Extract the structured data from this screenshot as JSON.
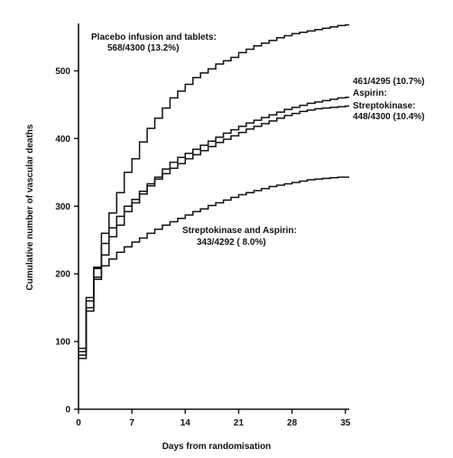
{
  "chart_data": {
    "type": "line",
    "step": true,
    "title": "",
    "xlabel": "Days from randomisation",
    "ylabel": "Cumulative number of vascular deaths",
    "xlim": [
      0,
      35.5
    ],
    "ylim": [
      0,
      570
    ],
    "xticks": [
      0,
      7,
      14,
      21,
      28,
      35
    ],
    "yticks": [
      0,
      100,
      200,
      300,
      400,
      500
    ],
    "grid": false,
    "series": [
      {
        "name": "Placebo infusion and tablets",
        "x": [
          0,
          1,
          2,
          3,
          4,
          5,
          6,
          7,
          8,
          9,
          10,
          11,
          12,
          13,
          14,
          15,
          16,
          17,
          18,
          19,
          20,
          21,
          22,
          23,
          24,
          25,
          26,
          27,
          28,
          29,
          30,
          31,
          32,
          33,
          34,
          35
        ],
        "y": [
          90,
          165,
          210,
          260,
          290,
          320,
          350,
          370,
          395,
          415,
          430,
          445,
          460,
          470,
          480,
          490,
          497,
          503,
          510,
          515,
          520,
          527,
          532,
          537,
          541,
          545,
          549,
          552,
          555,
          557,
          559,
          561,
          563,
          565,
          567,
          568
        ]
      },
      {
        "name": "Aspirin",
        "x": [
          0,
          1,
          2,
          3,
          4,
          5,
          6,
          7,
          8,
          9,
          10,
          11,
          12,
          13,
          14,
          15,
          16,
          17,
          18,
          19,
          20,
          21,
          22,
          23,
          24,
          25,
          26,
          27,
          28,
          29,
          30,
          31,
          32,
          33,
          34,
          35
        ],
        "y": [
          85,
          160,
          208,
          245,
          268,
          285,
          300,
          310,
          322,
          333,
          343,
          355,
          365,
          372,
          378,
          384,
          390,
          396,
          402,
          408,
          413,
          418,
          423,
          427,
          431,
          435,
          439,
          443,
          446,
          449,
          452,
          454,
          456,
          458,
          460,
          461
        ]
      },
      {
        "name": "Streptokinase",
        "x": [
          0,
          1,
          2,
          3,
          4,
          5,
          6,
          7,
          8,
          9,
          10,
          11,
          12,
          13,
          14,
          15,
          16,
          17,
          18,
          19,
          20,
          21,
          22,
          23,
          24,
          25,
          26,
          27,
          28,
          29,
          30,
          31,
          32,
          33,
          34,
          35
        ],
        "y": [
          80,
          150,
          195,
          228,
          255,
          272,
          292,
          305,
          318,
          330,
          340,
          348,
          356,
          363,
          370,
          376,
          382,
          388,
          394,
          399,
          404,
          409,
          414,
          418,
          422,
          426,
          430,
          434,
          437,
          440,
          442,
          444,
          445,
          446,
          447,
          448
        ]
      },
      {
        "name": "Streptokinase and Aspirin",
        "x": [
          0,
          1,
          2,
          3,
          4,
          5,
          6,
          7,
          8,
          9,
          10,
          11,
          12,
          13,
          14,
          15,
          16,
          17,
          18,
          19,
          20,
          21,
          22,
          23,
          24,
          25,
          26,
          27,
          28,
          29,
          30,
          31,
          32,
          33,
          34,
          35
        ],
        "y": [
          75,
          145,
          192,
          212,
          222,
          232,
          240,
          247,
          253,
          260,
          266,
          272,
          277,
          282,
          287,
          292,
          296,
          301,
          305,
          309,
          313,
          317,
          320,
          323,
          326,
          329,
          331,
          333,
          335,
          337,
          339,
          340,
          341,
          342,
          343,
          343
        ]
      }
    ],
    "annotations": [
      {
        "id": "placebo",
        "lines": [
          "Placebo infusion and tablets:",
          "568/4300 (13.2%)"
        ]
      },
      {
        "id": "aspirin",
        "lines": [
          "461/4295 (10.7%)",
          "Aspirin:"
        ]
      },
      {
        "id": "streptokinase",
        "lines": [
          "Streptokinase:",
          "448/4300 (10.4%)"
        ]
      },
      {
        "id": "combo",
        "lines": [
          "Streptokinase and Aspirin:",
          "343/4292 ( 8.0%)"
        ]
      }
    ]
  }
}
